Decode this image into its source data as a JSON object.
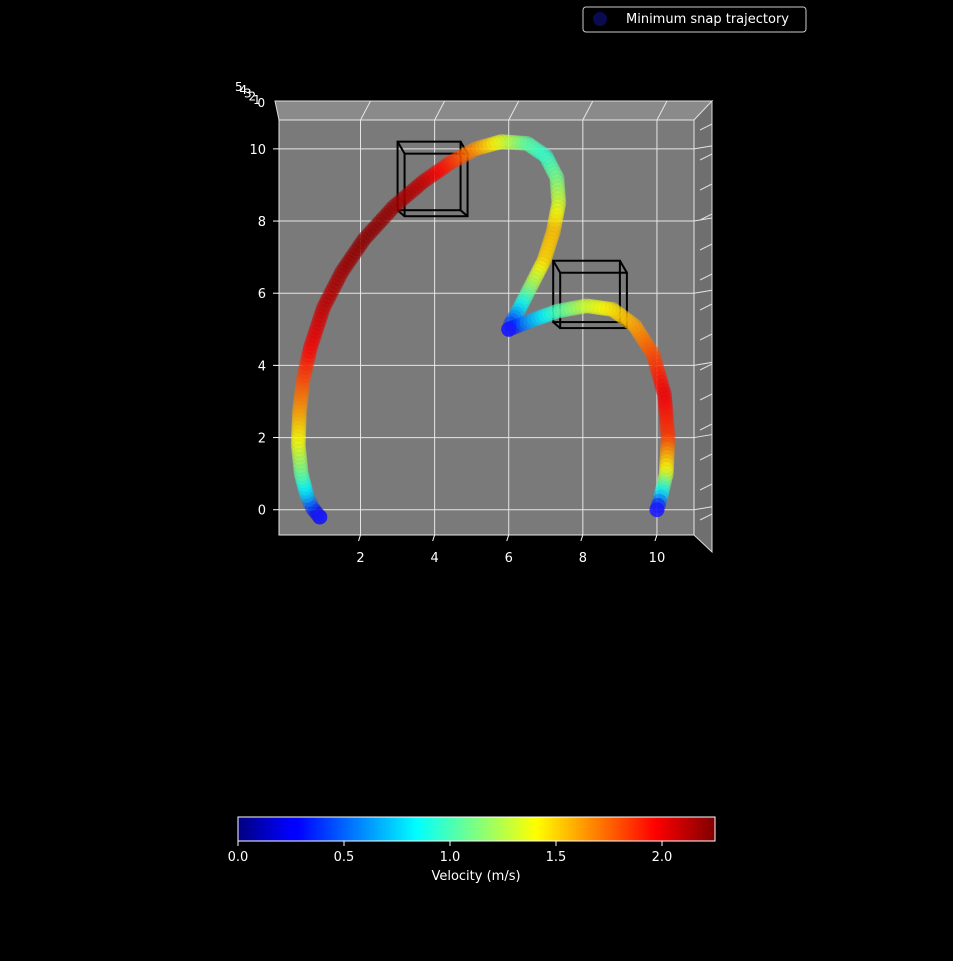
{
  "chart_data": {
    "type": "scatter",
    "projection": "3d",
    "view": "top-down",
    "legend": {
      "label": "Minimum snap trajectory",
      "placement": "top-right",
      "marker_color": "#0a0a50"
    },
    "axes": {
      "x": {
        "ticks": [
          2,
          4,
          6,
          8,
          10
        ],
        "lim": [
          -0.2,
          11
        ]
      },
      "y": {
        "ticks": [
          0,
          2,
          4,
          6,
          8,
          10
        ],
        "lim": [
          -0.7,
          10.8
        ]
      },
      "z": {
        "tick_labels": [
          "5",
          "4",
          "3",
          "2",
          "1",
          "0"
        ]
      },
      "grid": true,
      "pane_color": "#7a7a7a",
      "grid_color": "#e6e6e6"
    },
    "colorbar": {
      "label": "Velocity (m/s)",
      "ticks": [
        0.0,
        0.5,
        1.0,
        1.5,
        2.0
      ],
      "tick_labels": [
        "0.0",
        "0.5",
        "1.0",
        "1.5",
        "2.0"
      ],
      "range": [
        0,
        2.25
      ],
      "colormap": "jet"
    },
    "waypoints": [
      {
        "x": 0.9,
        "y": -0.2
      },
      {
        "x": 6.0,
        "y": 5.0
      },
      {
        "x": 10.0,
        "y": 0.0
      }
    ],
    "obstacles": [
      {
        "x": [
          3.0,
          4.7
        ],
        "y": [
          8.3,
          10.2
        ]
      },
      {
        "x": [
          7.2,
          9.0
        ],
        "y": [
          5.2,
          6.9
        ]
      }
    ],
    "trajectory": [
      {
        "x": 0.9,
        "y": -0.2,
        "v": 0.0
      },
      {
        "x": 0.7,
        "y": 0.05,
        "v": 0.35
      },
      {
        "x": 0.55,
        "y": 0.4,
        "v": 0.7
      },
      {
        "x": 0.4,
        "y": 1.0,
        "v": 1.05
      },
      {
        "x": 0.32,
        "y": 1.8,
        "v": 1.35
      },
      {
        "x": 0.35,
        "y": 2.7,
        "v": 1.6
      },
      {
        "x": 0.45,
        "y": 3.6,
        "v": 1.8
      },
      {
        "x": 0.65,
        "y": 4.5,
        "v": 1.98
      },
      {
        "x": 1.0,
        "y": 5.6,
        "v": 2.1
      },
      {
        "x": 1.5,
        "y": 6.6,
        "v": 2.18
      },
      {
        "x": 2.1,
        "y": 7.5,
        "v": 2.22
      },
      {
        "x": 2.9,
        "y": 8.4,
        "v": 2.2
      },
      {
        "x": 3.7,
        "y": 9.1,
        "v": 2.1
      },
      {
        "x": 4.4,
        "y": 9.6,
        "v": 1.9
      },
      {
        "x": 5.1,
        "y": 10.0,
        "v": 1.65
      },
      {
        "x": 5.8,
        "y": 10.2,
        "v": 1.35
      },
      {
        "x": 6.5,
        "y": 10.15,
        "v": 1.05
      },
      {
        "x": 7.0,
        "y": 9.8,
        "v": 0.95
      },
      {
        "x": 7.3,
        "y": 9.2,
        "v": 1.1
      },
      {
        "x": 7.35,
        "y": 8.5,
        "v": 1.3
      },
      {
        "x": 7.2,
        "y": 7.7,
        "v": 1.55
      },
      {
        "x": 6.95,
        "y": 6.9,
        "v": 1.5
      },
      {
        "x": 6.6,
        "y": 6.2,
        "v": 1.2
      },
      {
        "x": 6.3,
        "y": 5.6,
        "v": 0.8
      },
      {
        "x": 6.05,
        "y": 5.15,
        "v": 0.4
      },
      {
        "x": 6.0,
        "y": 5.0,
        "v": 0.2
      },
      {
        "x": 6.5,
        "y": 5.2,
        "v": 0.6
      },
      {
        "x": 7.3,
        "y": 5.5,
        "v": 1.0
      },
      {
        "x": 8.1,
        "y": 5.65,
        "v": 1.3
      },
      {
        "x": 8.8,
        "y": 5.55,
        "v": 1.45
      },
      {
        "x": 9.4,
        "y": 5.1,
        "v": 1.6
      },
      {
        "x": 9.9,
        "y": 4.3,
        "v": 1.8
      },
      {
        "x": 10.2,
        "y": 3.2,
        "v": 2.0
      },
      {
        "x": 10.3,
        "y": 2.0,
        "v": 1.85
      },
      {
        "x": 10.25,
        "y": 1.0,
        "v": 1.35
      },
      {
        "x": 10.1,
        "y": 0.35,
        "v": 0.7
      },
      {
        "x": 10.0,
        "y": 0.0,
        "v": 0.1
      }
    ]
  }
}
